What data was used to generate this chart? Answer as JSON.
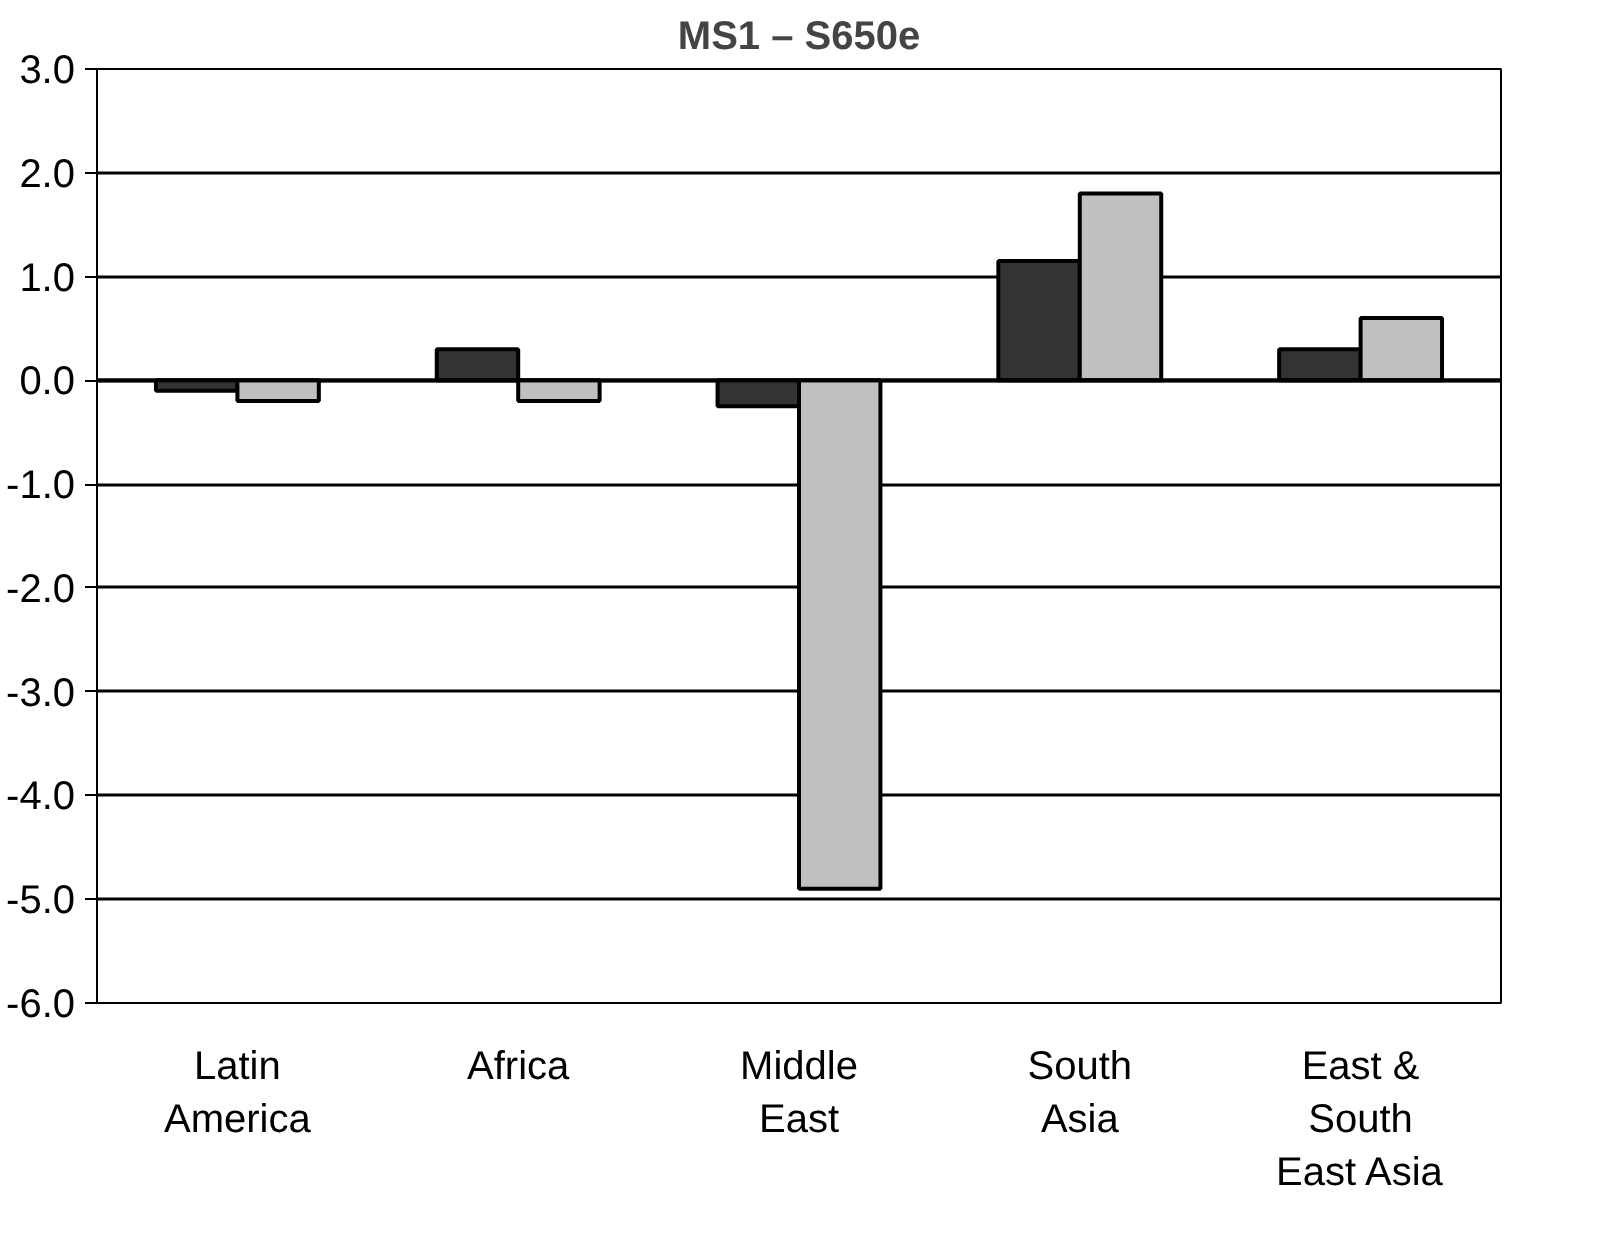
{
  "chart_data": {
    "type": "bar",
    "title": "MS1 – S650e",
    "categories": [
      "Latin America",
      "Africa",
      "Middle East",
      "South Asia",
      "East & South East Asia"
    ],
    "series": [
      {
        "color": "#333333",
        "values": [
          -0.1,
          0.3,
          -0.25,
          1.15,
          0.3
        ]
      },
      {
        "color": "#c0c0c0",
        "values": [
          -0.2,
          -0.2,
          -4.9,
          1.8,
          0.6
        ]
      }
    ],
    "ylim": [
      -6.0,
      3.0
    ],
    "yticks": [
      {
        "value": -6,
        "label": "-6.0"
      },
      {
        "value": -5,
        "label": "-5.0"
      },
      {
        "value": -4,
        "label": "-4.0"
      },
      {
        "value": -3,
        "label": "-3.0"
      },
      {
        "value": -2,
        "label": "-2.0"
      },
      {
        "value": -1,
        "label": "-1.0"
      },
      {
        "value": 0,
        "label": "0.0"
      },
      {
        "value": 1,
        "label": "1.0"
      },
      {
        "value": 2,
        "label": "2.0"
      },
      {
        "value": 3,
        "label": "3.0"
      }
    ],
    "grid": "y"
  }
}
